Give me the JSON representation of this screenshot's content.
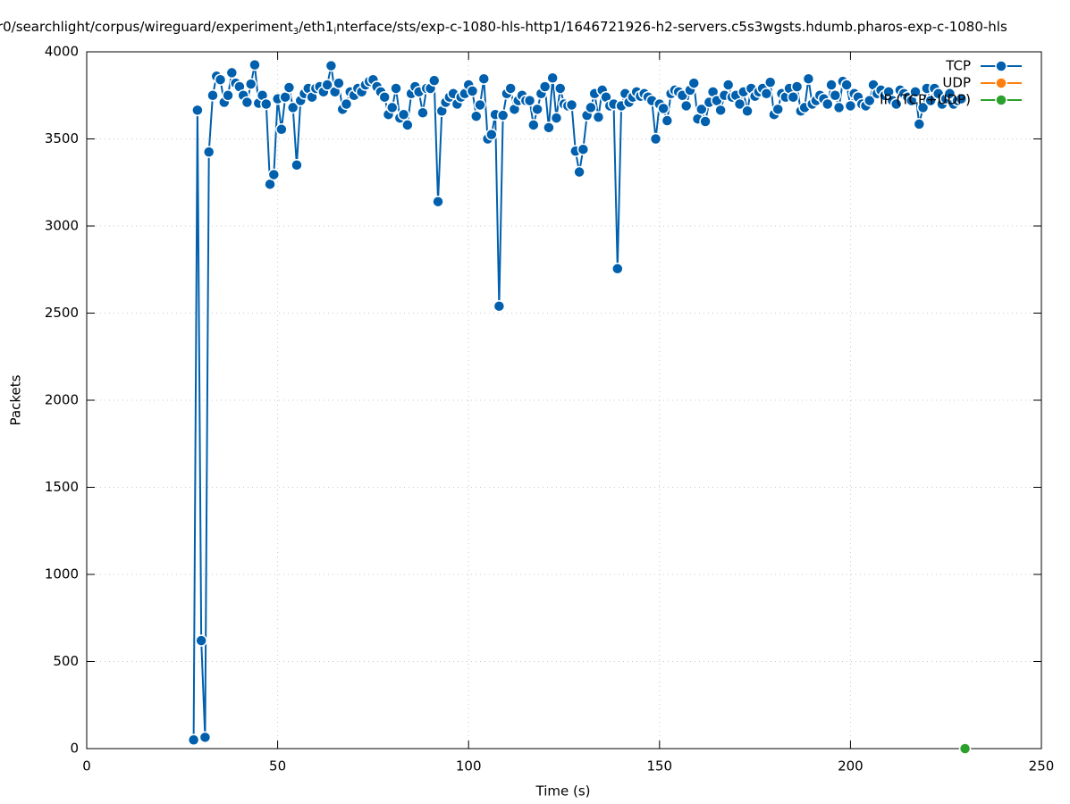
{
  "chart_data": {
    "type": "line",
    "title_parts": [
      "r0/searchlight/corpus/wireguard/experiment",
      "3",
      "/eth1",
      "i",
      "nterface/sts/exp-c-1080-hls-http1/1646721926-h2-servers.c5s3wgsts.hdumb.pharos-exp-c-1080-hls"
    ],
    "title_subscripts": [
      false,
      true,
      false,
      true,
      false
    ],
    "x_label": "Time (s)",
    "y_label": "Packets",
    "xlim": [
      0,
      250
    ],
    "ylim": [
      0,
      4000
    ],
    "xticks": [
      0,
      50,
      100,
      150,
      200,
      250
    ],
    "yticks": [
      0,
      500,
      1000,
      1500,
      2000,
      2500,
      3000,
      3500,
      4000
    ],
    "grid": true,
    "legend": "top-right",
    "series": [
      {
        "name": "TCP",
        "color": "#0060ad",
        "x": [
          28,
          29,
          30,
          31,
          32,
          33,
          34,
          35,
          36,
          37,
          38,
          39,
          40,
          41,
          42,
          43,
          44,
          45,
          46,
          47,
          48,
          49,
          50,
          51,
          52,
          53,
          54,
          55,
          56,
          57,
          58,
          59,
          60,
          61,
          62,
          63,
          64,
          65,
          66,
          67,
          68,
          69,
          70,
          71,
          72,
          73,
          74,
          75,
          76,
          77,
          78,
          79,
          80,
          81,
          82,
          83,
          84,
          85,
          86,
          87,
          88,
          89,
          90,
          91,
          92,
          93,
          94,
          95,
          96,
          97,
          98,
          99,
          100,
          101,
          102,
          103,
          104,
          105,
          106,
          107,
          108,
          109,
          110,
          111,
          112,
          113,
          114,
          115,
          116,
          117,
          118,
          119,
          120,
          121,
          122,
          123,
          124,
          125,
          126,
          127,
          128,
          129,
          130,
          131,
          132,
          133,
          134,
          135,
          136,
          137,
          138,
          139,
          140,
          141,
          142,
          143,
          144,
          145,
          146,
          147,
          148,
          149,
          150,
          151,
          152,
          153,
          154,
          155,
          156,
          157,
          158,
          159,
          160,
          161,
          162,
          163,
          164,
          165,
          166,
          167,
          168,
          169,
          170,
          171,
          172,
          173,
          174,
          175,
          176,
          177,
          178,
          179,
          180,
          181,
          182,
          183,
          184,
          185,
          186,
          187,
          188,
          189,
          190,
          191,
          192,
          193,
          194,
          195,
          196,
          197,
          198,
          199,
          200,
          201,
          202,
          203,
          204,
          205,
          206,
          207,
          208,
          209,
          210,
          211,
          212,
          213,
          214,
          215,
          216,
          217,
          218,
          219,
          220,
          221,
          222,
          223,
          224,
          225,
          226,
          227,
          228,
          229
        ],
        "values": [
          50,
          3665,
          620,
          65,
          3425,
          3750,
          3860,
          3840,
          3710,
          3750,
          3880,
          3820,
          3800,
          3750,
          3710,
          3815,
          3925,
          3705,
          3750,
          3700,
          3240,
          3295,
          3730,
          3555,
          3740,
          3795,
          3680,
          3350,
          3720,
          3760,
          3790,
          3740,
          3790,
          3800,
          3770,
          3810,
          3920,
          3770,
          3820,
          3670,
          3700,
          3770,
          3750,
          3790,
          3770,
          3810,
          3830,
          3840,
          3800,
          3770,
          3740,
          3640,
          3680,
          3790,
          3620,
          3640,
          3580,
          3760,
          3800,
          3770,
          3650,
          3790,
          3790,
          3835,
          3140,
          3660,
          3710,
          3740,
          3760,
          3700,
          3740,
          3760,
          3810,
          3775,
          3630,
          3695,
          3845,
          3500,
          3525,
          3640,
          2540,
          3635,
          3760,
          3790,
          3670,
          3720,
          3750,
          3720,
          3720,
          3580,
          3670,
          3760,
          3800,
          3565,
          3850,
          3620,
          3790,
          3700,
          3690,
          3695,
          3430,
          3310,
          3440,
          3635,
          3680,
          3760,
          3625,
          3780,
          3740,
          3690,
          3700,
          2755,
          3690,
          3760,
          3710,
          3740,
          3770,
          3745,
          3760,
          3740,
          3720,
          3500,
          3700,
          3675,
          3605,
          3760,
          3780,
          3770,
          3750,
          3690,
          3780,
          3820,
          3615,
          3670,
          3600,
          3710,
          3770,
          3720,
          3665,
          3750,
          3810,
          3740,
          3750,
          3700,
          3770,
          3660,
          3790,
          3745,
          3770,
          3790,
          3760,
          3825,
          3640,
          3670,
          3760,
          3740,
          3790,
          3740,
          3800,
          3660,
          3680,
          3845,
          3700,
          3720,
          3750,
          3730,
          3700,
          3810,
          3750,
          3680,
          3830,
          3810,
          3690,
          3760,
          3740,
          3700,
          3690,
          3720,
          3810,
          3760,
          3780,
          3750,
          3770,
          3720,
          3700,
          3780,
          3760,
          3740,
          3720,
          3770,
          3585,
          3680,
          3790,
          3720,
          3790,
          3760,
          3700,
          3730,
          3760,
          3700,
          3720,
          3730
        ]
      },
      {
        "name": "UDP",
        "color": "#ff7f0e",
        "x": [],
        "values": []
      },
      {
        "name": "IP (TCP+UDP)",
        "color": "#2ca02c",
        "x": [
          230
        ],
        "values": [
          0
        ]
      }
    ]
  }
}
